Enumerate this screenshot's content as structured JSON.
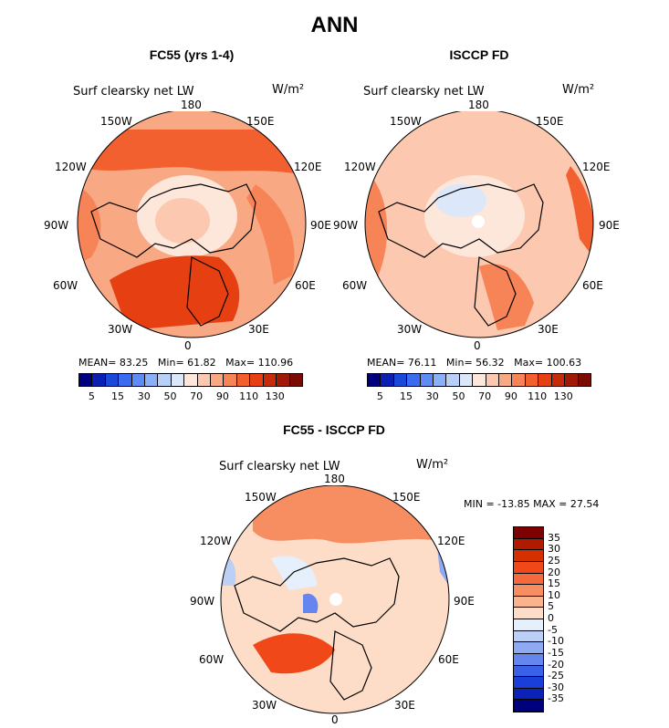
{
  "page_title": "ANN",
  "units": "W/m²",
  "variable": "Surf clearsky net LW",
  "panels": [
    {
      "title": "FC55 (yrs 1-4)",
      "stats": {
        "mean_label": "MEAN=",
        "mean": "83.25",
        "min_label": "Min=",
        "min": "61.82",
        "max_label": "Max=",
        "max": "110.96"
      }
    },
    {
      "title": "ISCCP FD",
      "stats": {
        "mean_label": "MEAN=",
        "mean": "76.11",
        "min_label": "Min=",
        "min": "56.32",
        "max_label": "Max=",
        "max": "100.63"
      }
    },
    {
      "title": "FC55 - ISCCP FD",
      "stats": {
        "text": "MIN = -13.85 MAX =  27.54"
      }
    }
  ],
  "longitude_labels": {
    "top": "180",
    "bottom": "0",
    "left_upper": "150W",
    "right_upper": "150E",
    "left_mid_upper": "120W",
    "right_mid_upper": "120E",
    "left": "90W",
    "right": "90E",
    "left_mid_lower": "60W",
    "right_mid_lower": "60E",
    "left_lower": "30W",
    "right_lower": "30E"
  },
  "colorbar_abs": {
    "colors": [
      "#00007f",
      "#0a20b0",
      "#1a48d8",
      "#3a6cf0",
      "#5e8cf4",
      "#8ab0f6",
      "#b8d0f8",
      "#dce8fa",
      "#fde6da",
      "#fcc9b0",
      "#f9a884",
      "#f68457",
      "#f2602f",
      "#e53f12",
      "#c62a0a",
      "#a01806",
      "#7a0a02"
    ],
    "labels": [
      "5",
      "15",
      "30",
      "50",
      "70",
      "90",
      "110",
      "130"
    ]
  },
  "colorbar_diff": {
    "colors": [
      "#7f0000",
      "#b01a00",
      "#d43000",
      "#f04818",
      "#f46a3c",
      "#f78e62",
      "#f9b48e",
      "#fdddc8",
      "#e6f0fc",
      "#bcd0f6",
      "#8eaaf2",
      "#6486ee",
      "#3a60e8",
      "#1a3ed8",
      "#0a22b8",
      "#00007f"
    ],
    "labels": [
      "35",
      "30",
      "25",
      "20",
      "15",
      "10",
      "5",
      "0",
      "-5",
      "-10",
      "-15",
      "-20",
      "-25",
      "-30",
      "-35"
    ]
  }
}
